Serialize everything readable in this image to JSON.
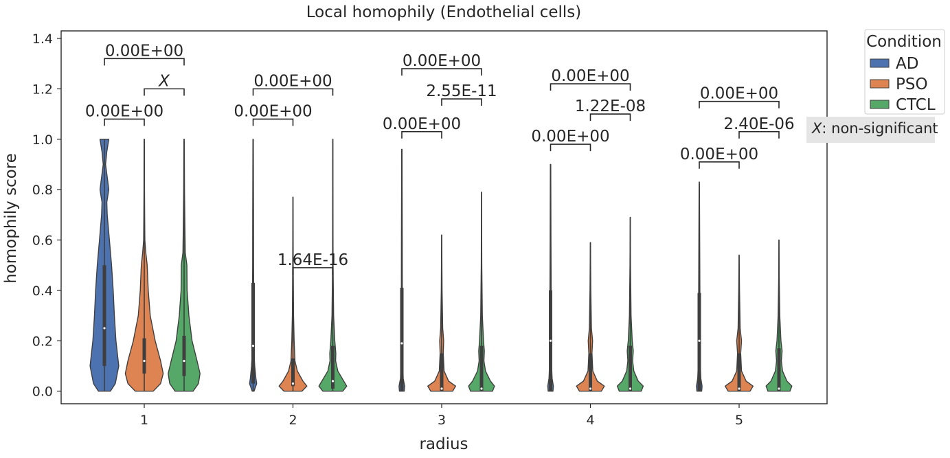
{
  "chart_data": {
    "type": "violin",
    "title": "Local homophily (Endothelial cells)",
    "xlabel": "radius",
    "ylabel": "homophily score",
    "categories": [
      "1",
      "2",
      "3",
      "4",
      "5"
    ],
    "ylim": [
      -0.05,
      1.43
    ],
    "yticks": [
      0.0,
      0.2,
      0.4,
      0.6,
      0.8,
      1.0,
      1.2,
      1.4
    ],
    "ytick_labels": [
      "0.0",
      "0.2",
      "0.4",
      "0.6",
      "0.8",
      "1.0",
      "1.2",
      "1.4"
    ],
    "grid": false,
    "legend": {
      "title": "Condition",
      "placement": "outside upper right",
      "entries": [
        {
          "name": "AD",
          "color": "#4c72b0"
        },
        {
          "name": "PSO",
          "color": "#dd8452"
        },
        {
          "name": "CTCL",
          "color": "#55a868"
        }
      ]
    },
    "series": [
      {
        "name": "AD",
        "color": "#4c72b0",
        "medians": [
          0.25,
          0.18,
          0.19,
          0.2,
          0.2
        ],
        "q1": [
          0.1,
          0.03,
          0.0,
          0.0,
          0.0
        ],
        "q3": [
          0.5,
          0.43,
          0.41,
          0.4,
          0.39
        ],
        "mins": [
          0.0,
          0.0,
          0.0,
          0.0,
          0.0
        ],
        "maxs": [
          1.0,
          1.0,
          0.96,
          0.9,
          0.83
        ],
        "shapes": [
          [
            [
              0,
              0.3
            ],
            [
              0.03,
              0.55
            ],
            [
              0.1,
              0.72
            ],
            [
              0.2,
              0.58
            ],
            [
              0.3,
              0.5
            ],
            [
              0.4,
              0.44
            ],
            [
              0.5,
              0.36
            ],
            [
              0.6,
              0.25
            ],
            [
              0.7,
              0.14
            ],
            [
              0.75,
              0.12
            ],
            [
              0.8,
              0.22
            ],
            [
              0.85,
              0.14
            ],
            [
              0.9,
              0.06
            ],
            [
              0.95,
              0.12
            ],
            [
              1.0,
              0.22
            ]
          ],
          [
            [
              0,
              0.05
            ],
            [
              0.03,
              0.18
            ],
            [
              0.05,
              0.14
            ],
            [
              0.1,
              0.08
            ],
            [
              0.15,
              0.05
            ],
            [
              0.2,
              0.04
            ],
            [
              0.3,
              0.03
            ],
            [
              0.4,
              0.03
            ],
            [
              0.5,
              0.025
            ],
            [
              0.7,
              0.02
            ],
            [
              0.9,
              0.015
            ],
            [
              1.0,
              0.01
            ]
          ],
          [
            [
              0,
              0.12
            ],
            [
              0.02,
              0.14
            ],
            [
              0.05,
              0.07
            ],
            [
              0.1,
              0.05
            ],
            [
              0.2,
              0.035
            ],
            [
              0.3,
              0.03
            ],
            [
              0.4,
              0.025
            ],
            [
              0.6,
              0.02
            ],
            [
              0.8,
              0.015
            ],
            [
              0.96,
              0.01
            ]
          ],
          [
            [
              0,
              0.12
            ],
            [
              0.02,
              0.14
            ],
            [
              0.05,
              0.08
            ],
            [
              0.1,
              0.05
            ],
            [
              0.2,
              0.04
            ],
            [
              0.3,
              0.04
            ],
            [
              0.4,
              0.03
            ],
            [
              0.6,
              0.02
            ],
            [
              0.8,
              0.015
            ],
            [
              0.9,
              0.01
            ]
          ],
          [
            [
              0,
              0.12
            ],
            [
              0.02,
              0.14
            ],
            [
              0.05,
              0.08
            ],
            [
              0.1,
              0.05
            ],
            [
              0.2,
              0.04
            ],
            [
              0.3,
              0.035
            ],
            [
              0.4,
              0.03
            ],
            [
              0.6,
              0.02
            ],
            [
              0.8,
              0.01
            ],
            [
              0.83,
              0.005
            ]
          ]
        ]
      },
      {
        "name": "PSO",
        "color": "#dd8452",
        "medians": [
          0.12,
          0.03,
          0.01,
          0.01,
          0.01
        ],
        "q1": [
          0.07,
          0.02,
          0.0,
          0.0,
          0.0
        ],
        "q3": [
          0.21,
          0.13,
          0.15,
          0.15,
          0.15
        ],
        "mins": [
          0.0,
          0.0,
          0.0,
          0.0,
          0.0
        ],
        "maxs": [
          1.0,
          0.77,
          0.62,
          0.59,
          0.54
        ],
        "shapes": [
          [
            [
              0,
              0.45
            ],
            [
              0.03,
              0.82
            ],
            [
              0.07,
              0.95
            ],
            [
              0.12,
              0.82
            ],
            [
              0.2,
              0.55
            ],
            [
              0.3,
              0.3
            ],
            [
              0.4,
              0.2
            ],
            [
              0.5,
              0.15
            ],
            [
              0.55,
              0.08
            ],
            [
              0.6,
              0.03
            ],
            [
              0.7,
              0.02
            ],
            [
              0.8,
              0.015
            ],
            [
              1.0,
              0.01
            ]
          ],
          [
            [
              0,
              0.45
            ],
            [
              0.02,
              0.7
            ],
            [
              0.04,
              0.5
            ],
            [
              0.08,
              0.22
            ],
            [
              0.12,
              0.1
            ],
            [
              0.2,
              0.06
            ],
            [
              0.3,
              0.03
            ],
            [
              0.5,
              0.015
            ],
            [
              0.77,
              0.005
            ]
          ],
          [
            [
              0,
              0.55
            ],
            [
              0.02,
              0.7
            ],
            [
              0.04,
              0.35
            ],
            [
              0.08,
              0.12
            ],
            [
              0.15,
              0.08
            ],
            [
              0.2,
              0.1
            ],
            [
              0.25,
              0.05
            ],
            [
              0.4,
              0.02
            ],
            [
              0.62,
              0.005
            ]
          ],
          [
            [
              0,
              0.55
            ],
            [
              0.02,
              0.7
            ],
            [
              0.04,
              0.35
            ],
            [
              0.08,
              0.12
            ],
            [
              0.15,
              0.08
            ],
            [
              0.2,
              0.11
            ],
            [
              0.25,
              0.05
            ],
            [
              0.4,
              0.02
            ],
            [
              0.59,
              0.005
            ]
          ],
          [
            [
              0,
              0.55
            ],
            [
              0.02,
              0.7
            ],
            [
              0.04,
              0.35
            ],
            [
              0.08,
              0.12
            ],
            [
              0.15,
              0.08
            ],
            [
              0.2,
              0.12
            ],
            [
              0.25,
              0.05
            ],
            [
              0.4,
              0.02
            ],
            [
              0.54,
              0.005
            ]
          ]
        ]
      },
      {
        "name": "CTCL",
        "color": "#55a868",
        "medians": [
          0.12,
          0.04,
          0.01,
          0.01,
          0.01
        ],
        "q1": [
          0.06,
          0.01,
          0.0,
          0.0,
          0.0
        ],
        "q3": [
          0.22,
          0.18,
          0.18,
          0.18,
          0.17
        ],
        "mins": [
          0.0,
          0.0,
          0.0,
          0.0,
          0.0
        ],
        "maxs": [
          1.0,
          1.0,
          0.79,
          0.69,
          0.6
        ],
        "shapes": [
          [
            [
              0,
              0.45
            ],
            [
              0.03,
              0.72
            ],
            [
              0.07,
              0.8
            ],
            [
              0.12,
              0.65
            ],
            [
              0.2,
              0.4
            ],
            [
              0.3,
              0.24
            ],
            [
              0.4,
              0.15
            ],
            [
              0.5,
              0.14
            ],
            [
              0.55,
              0.06
            ],
            [
              0.65,
              0.04
            ],
            [
              0.8,
              0.02
            ],
            [
              1.0,
              0.01
            ]
          ],
          [
            [
              0,
              0.5
            ],
            [
              0.02,
              0.7
            ],
            [
              0.04,
              0.55
            ],
            [
              0.08,
              0.25
            ],
            [
              0.12,
              0.14
            ],
            [
              0.15,
              0.15
            ],
            [
              0.2,
              0.1
            ],
            [
              0.3,
              0.04
            ],
            [
              0.5,
              0.015
            ],
            [
              0.8,
              0.008
            ],
            [
              1.0,
              0.005
            ]
          ],
          [
            [
              0,
              0.55
            ],
            [
              0.02,
              0.65
            ],
            [
              0.04,
              0.45
            ],
            [
              0.08,
              0.2
            ],
            [
              0.12,
              0.12
            ],
            [
              0.16,
              0.14
            ],
            [
              0.2,
              0.1
            ],
            [
              0.3,
              0.04
            ],
            [
              0.5,
              0.015
            ],
            [
              0.79,
              0.005
            ]
          ],
          [
            [
              0,
              0.55
            ],
            [
              0.02,
              0.65
            ],
            [
              0.04,
              0.4
            ],
            [
              0.08,
              0.18
            ],
            [
              0.12,
              0.12
            ],
            [
              0.16,
              0.15
            ],
            [
              0.2,
              0.1
            ],
            [
              0.3,
              0.04
            ],
            [
              0.5,
              0.015
            ],
            [
              0.69,
              0.005
            ]
          ],
          [
            [
              0,
              0.55
            ],
            [
              0.02,
              0.65
            ],
            [
              0.04,
              0.4
            ],
            [
              0.08,
              0.18
            ],
            [
              0.12,
              0.12
            ],
            [
              0.16,
              0.16
            ],
            [
              0.2,
              0.1
            ],
            [
              0.3,
              0.04
            ],
            [
              0.45,
              0.015
            ],
            [
              0.6,
              0.005
            ]
          ]
        ]
      }
    ],
    "annotations": [
      {
        "category": "1",
        "from": "AD",
        "to": "PSO",
        "y": 1.08,
        "label": "0.00E+00"
      },
      {
        "category": "1",
        "from": "PSO",
        "to": "CTCL",
        "y": 1.2,
        "label": "X",
        "italic": true
      },
      {
        "category": "1",
        "from": "AD",
        "to": "CTCL",
        "y": 1.32,
        "label": "0.00E+00"
      },
      {
        "category": "2",
        "from": "AD",
        "to": "PSO",
        "y": 1.08,
        "label": "0.00E+00"
      },
      {
        "category": "2",
        "from": "PSO",
        "to": "CTCL",
        "y": 0.49,
        "label": "1.64E-16"
      },
      {
        "category": "2",
        "from": "AD",
        "to": "CTCL",
        "y": 1.2,
        "label": "0.00E+00"
      },
      {
        "category": "3",
        "from": "AD",
        "to": "PSO",
        "y": 1.03,
        "label": "0.00E+00"
      },
      {
        "category": "3",
        "from": "PSO",
        "to": "CTCL",
        "y": 1.16,
        "label": "2.55E-11"
      },
      {
        "category": "3",
        "from": "AD",
        "to": "CTCL",
        "y": 1.28,
        "label": "0.00E+00"
      },
      {
        "category": "4",
        "from": "AD",
        "to": "PSO",
        "y": 0.98,
        "label": "0.00E+00"
      },
      {
        "category": "4",
        "from": "PSO",
        "to": "CTCL",
        "y": 1.1,
        "label": "1.22E-08"
      },
      {
        "category": "4",
        "from": "AD",
        "to": "CTCL",
        "y": 1.22,
        "label": "0.00E+00"
      },
      {
        "category": "5",
        "from": "AD",
        "to": "PSO",
        "y": 0.91,
        "label": "0.00E+00"
      },
      {
        "category": "5",
        "from": "PSO",
        "to": "CTCL",
        "y": 1.03,
        "label": "2.40E-06"
      },
      {
        "category": "5",
        "from": "AD",
        "to": "CTCL",
        "y": 1.15,
        "label": "0.00E+00"
      }
    ],
    "note": {
      "symbol": "X",
      "text": ": non-significant"
    }
  }
}
